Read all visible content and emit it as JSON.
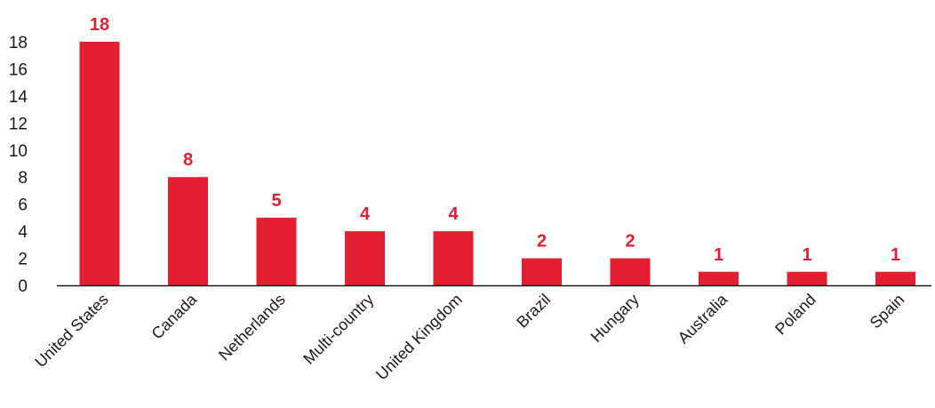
{
  "chart_data": {
    "type": "bar",
    "categories": [
      "United States",
      "Canada",
      "Netherlands",
      "Multi-country",
      "United Kingdom",
      "Brazil",
      "Hungary",
      "Australia",
      "Poland",
      "Spain"
    ],
    "values": [
      18,
      8,
      5,
      4,
      4,
      2,
      2,
      1,
      1,
      1
    ],
    "yticks": [
      0,
      2,
      4,
      6,
      8,
      10,
      12,
      14,
      16,
      18
    ],
    "ylim": [
      0,
      18
    ],
    "grid": false,
    "legend": "none",
    "title": "",
    "xlabel": "",
    "ylabel": "",
    "bar_color": "#e31e30",
    "data_label_color": "#e31e30",
    "axis_color": "#1a1a1a"
  }
}
